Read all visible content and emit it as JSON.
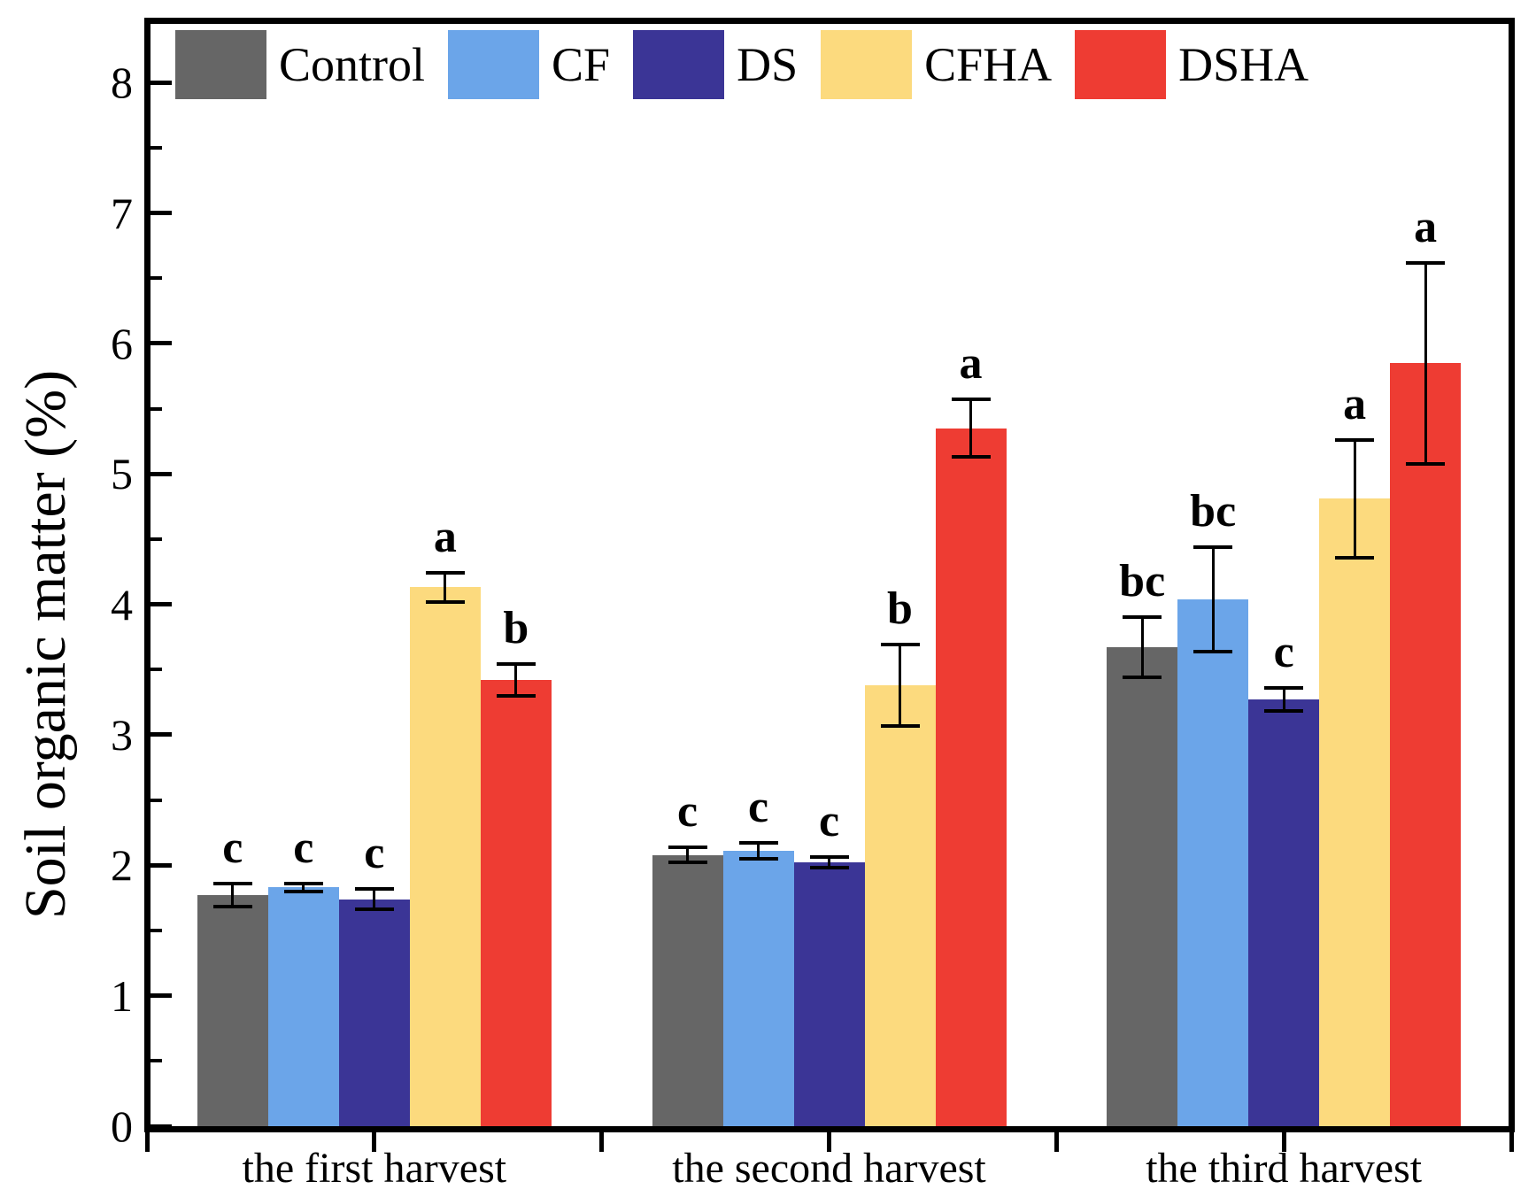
{
  "page": {
    "background": "#ffffff"
  },
  "axes": {
    "y_title": "Soil organic matter (%)",
    "y_tick_labels": [
      "0",
      "1",
      "2",
      "3",
      "4",
      "5",
      "6",
      "7",
      "8"
    ],
    "x_labels": [
      "the first harvest",
      "the second harvest",
      "the third harvest"
    ]
  },
  "legend": {
    "items": [
      {
        "label": "Control",
        "color": "#666666"
      },
      {
        "label": "CF",
        "color": "#6BA5E9"
      },
      {
        "label": "DS",
        "color": "#3B3596"
      },
      {
        "label": "CFHA",
        "color": "#FCDA7E"
      },
      {
        "label": "DSHA",
        "color": "#EE3C33"
      }
    ]
  },
  "chart_data": {
    "type": "bar",
    "title": "",
    "xlabel": "",
    "ylabel": "Soil organic matter (%)",
    "ylim": [
      0,
      8.45
    ],
    "yticks": [
      0,
      1,
      2,
      3,
      4,
      5,
      6,
      7,
      8
    ],
    "minor_ytick_step": 0.5,
    "grid": false,
    "legend_position": "top-inside",
    "categories": [
      "the first harvest",
      "the second harvest",
      "the third harvest"
    ],
    "series": [
      {
        "name": "Control",
        "color": "#666666",
        "values": [
          1.77,
          2.08,
          3.67
        ],
        "errors": [
          0.09,
          0.06,
          0.23
        ],
        "sig_letters": [
          "c",
          "c",
          "bc"
        ]
      },
      {
        "name": "CF",
        "color": "#6BA5E9",
        "values": [
          1.83,
          2.11,
          4.04
        ],
        "errors": [
          0.03,
          0.06,
          0.4
        ],
        "sig_letters": [
          "c",
          "c",
          "bc"
        ]
      },
      {
        "name": "DS",
        "color": "#3B3596",
        "values": [
          1.74,
          2.02,
          3.27
        ],
        "errors": [
          0.08,
          0.04,
          0.09
        ],
        "sig_letters": [
          "c",
          "c",
          "c"
        ]
      },
      {
        "name": "CFHA",
        "color": "#FCDA7E",
        "values": [
          4.13,
          3.38,
          4.81
        ],
        "errors": [
          0.11,
          0.31,
          0.45
        ],
        "sig_letters": [
          "a",
          "b",
          "a"
        ]
      },
      {
        "name": "DSHA",
        "color": "#EE3C33",
        "values": [
          3.42,
          5.35,
          5.85
        ],
        "errors": [
          0.12,
          0.22,
          0.77
        ],
        "sig_letters": [
          "b",
          "a",
          "a"
        ]
      }
    ]
  }
}
